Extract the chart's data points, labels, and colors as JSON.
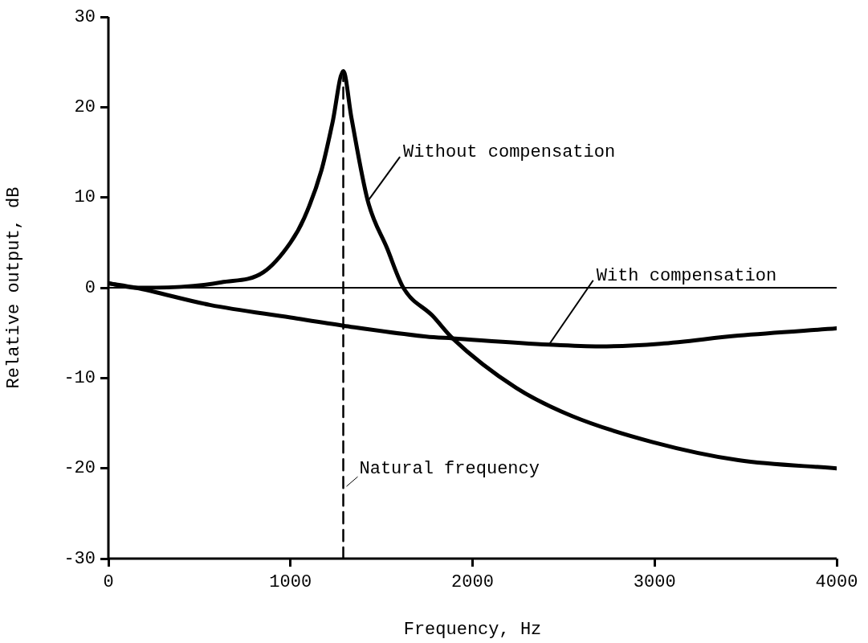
{
  "chart_data": {
    "type": "line",
    "xlabel": "Frequency, Hz",
    "ylabel": "Relative output, dB",
    "xlim": [
      0,
      4000
    ],
    "xticks": [
      0,
      1000,
      2000,
      3000,
      4000
    ],
    "ylim": [
      -30,
      30
    ],
    "yticks": [
      -30,
      -20,
      -10,
      0,
      10,
      20,
      30
    ],
    "grid": false,
    "legend": false,
    "marker": "none",
    "series": [
      {
        "name": "Without compensation",
        "color": "#000000",
        "x": [
          0,
          150,
          400,
          620,
          850,
          1000,
          1075,
          1170,
          1230,
          1290,
          1335,
          1425,
          1530,
          1620,
          1780,
          1890,
          2240,
          2545,
          2990,
          3460,
          4000
        ],
        "values": [
          0.5,
          0,
          0.1,
          0.6,
          1.7,
          5.0,
          7.7,
          13.0,
          18.2,
          24,
          18.8,
          9.6,
          4.4,
          0,
          -3.1,
          -5.6,
          -11.1,
          -14.2,
          -17.1,
          -19.1,
          -20
        ]
      },
      {
        "name": "With compensation",
        "color": "#000000",
        "x": [
          0,
          150,
          557,
          1000,
          1290,
          1745,
          1890,
          2420,
          2700,
          3030,
          3460,
          4000
        ],
        "values": [
          0.5,
          0,
          -1.9,
          -3.3,
          -4.2,
          -5.4,
          -5.6,
          -6.3,
          -6.5,
          -6.2,
          -5.3,
          -4.5
        ]
      },
      {
        "color": "#000000",
        "line_style": "dashed",
        "x": [
          1290,
          1290
        ],
        "values": [
          -30,
          24
        ]
      }
    ],
    "ref_lines": [
      {
        "axis": "y",
        "value": 0,
        "color": "#000000"
      }
    ],
    "annotations": [
      {
        "text": "Natural frequency",
        "x": 1290,
        "y": -22
      }
    ]
  }
}
